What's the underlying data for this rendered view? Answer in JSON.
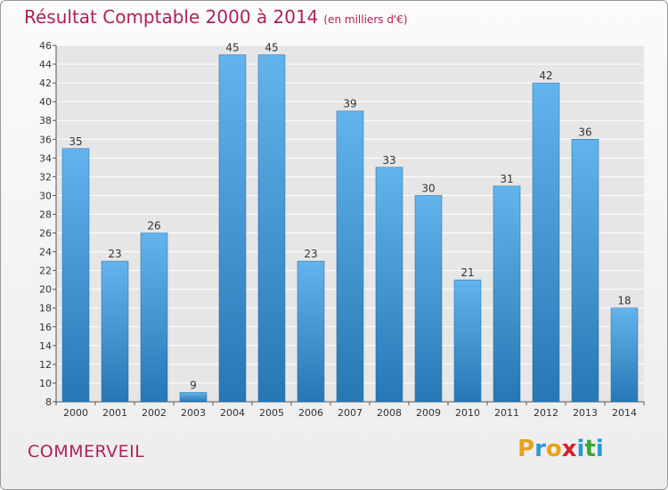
{
  "header": {
    "title": "Résultat Comptable 2000 à 2014",
    "subtitle": "(en milliers d'€)"
  },
  "footer": {
    "place": "COMMERVEIL",
    "logo_text": "Proxiti",
    "logo_letters": [
      {
        "ch": "P",
        "color": "#e8a21a"
      },
      {
        "ch": "r",
        "color": "#2a9ad6"
      },
      {
        "ch": "o",
        "color": "#e8a21a"
      },
      {
        "ch": "x",
        "color": "#d61f26"
      },
      {
        "ch": "i",
        "color": "#2a9ad6"
      },
      {
        "ch": "t",
        "color": "#3aa935"
      },
      {
        "ch": "i",
        "color": "#2a9ad6"
      }
    ]
  },
  "colors": {
    "title": "#b0205a",
    "bar_top": "#63b4ec",
    "bar_bottom": "#2777b5",
    "grid": "#ffffff",
    "axis_text": "#333333"
  },
  "chart_data": {
    "type": "bar",
    "categories": [
      "2000",
      "2001",
      "2002",
      "2003",
      "2004",
      "2005",
      "2006",
      "2007",
      "2008",
      "2009",
      "2010",
      "2011",
      "2012",
      "2013",
      "2014"
    ],
    "values": [
      35,
      23,
      26,
      9,
      45,
      45,
      23,
      39,
      33,
      30,
      21,
      31,
      42,
      36,
      18
    ],
    "data_labels": [
      "35",
      "23",
      "26",
      "9",
      "45",
      "45",
      "23",
      "39",
      "33",
      "30",
      "21",
      "31",
      "42",
      "36",
      "18"
    ],
    "title": "Résultat Comptable 2000 à 2014",
    "xlabel": "",
    "ylabel": "",
    "ylim": [
      8,
      46
    ],
    "yticks": [
      8,
      10,
      12,
      14,
      16,
      18,
      20,
      22,
      24,
      26,
      28,
      30,
      32,
      34,
      36,
      38,
      40,
      42,
      44,
      46
    ],
    "grid": true,
    "legend": "none"
  }
}
